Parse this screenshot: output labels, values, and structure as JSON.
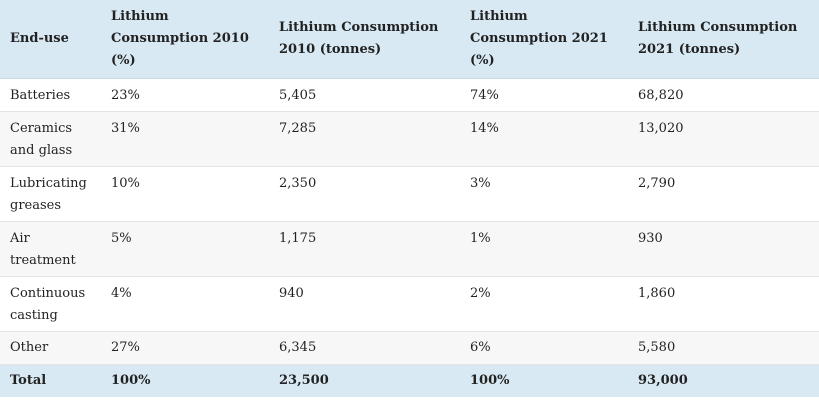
{
  "table": {
    "headers": [
      "End-use",
      "Lithium Consumption 2010 (%)",
      "Lithium Consumption 2010 (tonnes)",
      "Lithium Consumption 2021 (%)",
      "Lithium Consumption 2021 (tonnes)"
    ],
    "rows": [
      [
        "Batteries",
        "23%",
        "5,405",
        "74%",
        "68,820"
      ],
      [
        "Ceramics and glass",
        "31%",
        "7,285",
        "14%",
        "13,020"
      ],
      [
        "Lubricating greases",
        "10%",
        "2,350",
        "3%",
        "2,790"
      ],
      [
        "Air treatment",
        "5%",
        "1,175",
        "1%",
        "930"
      ],
      [
        "Continuous casting",
        "4%",
        "940",
        "2%",
        "1,860"
      ],
      [
        "Other",
        "27%",
        "6,345",
        "6%",
        "5,580"
      ]
    ],
    "total": [
      "Total",
      "100%",
      "23,500",
      "100%",
      "93,000"
    ]
  },
  "colors": {
    "header_background": "#d8e9f3",
    "row_alt_background": "#f7f7f7",
    "text": "#222222"
  }
}
